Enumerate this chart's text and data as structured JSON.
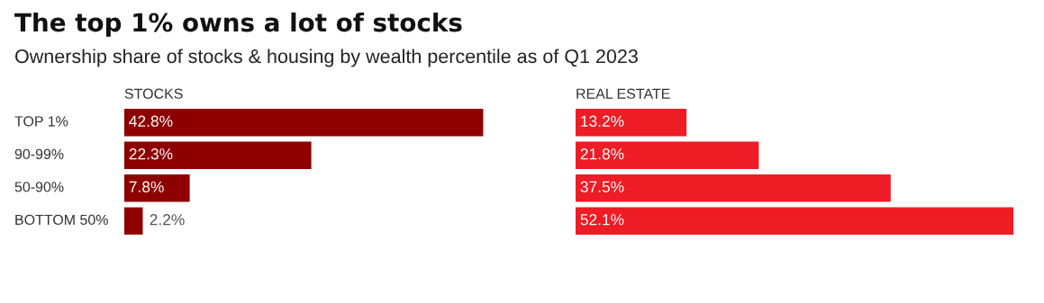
{
  "chart_data": [
    {
      "type": "bar",
      "orientation": "horizontal",
      "title": "The top 1% owns a lot of stocks",
      "subtitle": "Ownership share of stocks & housing by wealth percentile as of Q1 2023",
      "xlabel": "STOCKS",
      "categories": [
        "TOP 1%",
        "90-99%",
        "50-90%",
        "BOTTOM 50%"
      ],
      "series": [
        {
          "color": "#8e0000",
          "values": [
            42.8,
            22.3,
            7.8,
            2.2
          ],
          "value_labels": [
            "42.8%",
            "22.3%",
            "7.8%",
            "2.2%"
          ]
        }
      ],
      "grid": false,
      "legend": false
    },
    {
      "type": "bar",
      "orientation": "horizontal",
      "xlabel": "REAL ESTATE",
      "series": [
        {
          "color": "#ee1c25",
          "values": [
            13.2,
            21.8,
            37.5,
            52.1
          ],
          "value_labels": [
            "13.2%",
            "21.8%",
            "37.5%",
            "52.1%"
          ]
        }
      ],
      "grid": false,
      "legend": false
    }
  ]
}
